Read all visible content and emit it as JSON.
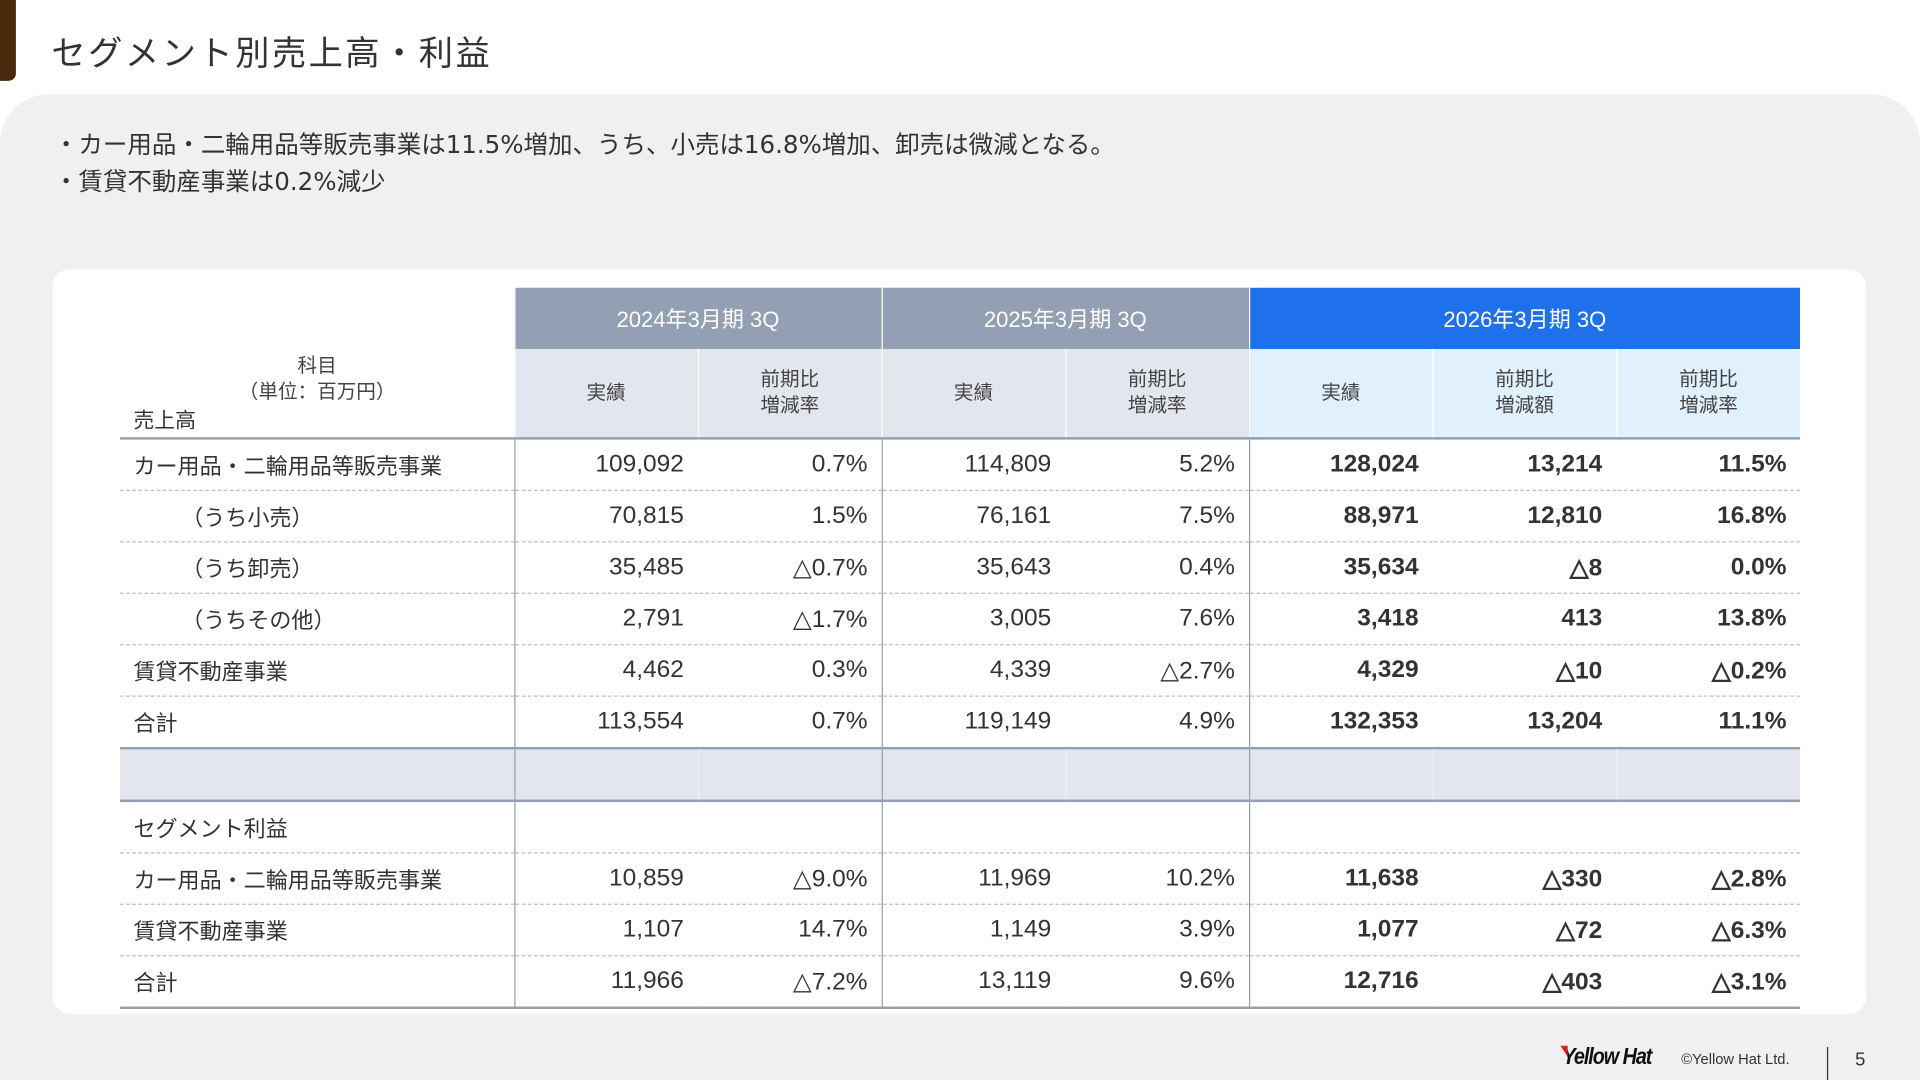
{
  "title": "セグメント別売上高・利益",
  "bullets": [
    "・カー用品・二輪用品等販売事業は11.5%増加、うち、小売は16.8%増加、卸売は微減となる。",
    "・賃貸不動産事業は0.2%減少"
  ],
  "table": {
    "label_header": {
      "line1": "科目",
      "line2": "（単位：百万円）",
      "section": "売上高"
    },
    "periods": [
      "2024年3月期 3Q",
      "2025年3月期 3Q",
      "2026年3月期 3Q"
    ],
    "sub_headers": {
      "actual": "実績",
      "rate": "前期比\n増減率",
      "amount": "前期比\n増減額"
    },
    "sales_rows": [
      {
        "label": "カー用品・二輪用品等販売事業",
        "indent": false,
        "v": [
          "109,092",
          "0.7%",
          "114,809",
          "5.2%",
          "128,024",
          "13,214",
          "11.5%"
        ]
      },
      {
        "label": "（うち小売）",
        "indent": true,
        "v": [
          "70,815",
          "1.5%",
          "76,161",
          "7.5%",
          "88,971",
          "12,810",
          "16.8%"
        ]
      },
      {
        "label": "（うち卸売）",
        "indent": true,
        "v": [
          "35,485",
          "△0.7%",
          "35,643",
          "0.4%",
          "35,634",
          "△8",
          "0.0%"
        ]
      },
      {
        "label": "（うちその他）",
        "indent": true,
        "v": [
          "2,791",
          "△1.7%",
          "3,005",
          "7.6%",
          "3,418",
          "413",
          "13.8%"
        ]
      },
      {
        "label": "賃貸不動産事業",
        "indent": false,
        "v": [
          "4,462",
          "0.3%",
          "4,339",
          "△2.7%",
          "4,329",
          "△10",
          "△0.2%"
        ]
      },
      {
        "label": "合計",
        "indent": false,
        "v": [
          "113,554",
          "0.7%",
          "119,149",
          "4.9%",
          "132,353",
          "13,204",
          "11.1%"
        ]
      }
    ],
    "profit_section": "セグメント利益",
    "profit_rows": [
      {
        "label": "カー用品・二輪用品等販売事業",
        "v": [
          "10,859",
          "△9.0%",
          "11,969",
          "10.2%",
          "11,638",
          "△330",
          "△2.8%"
        ]
      },
      {
        "label": "賃貸不動産事業",
        "v": [
          "1,107",
          "14.7%",
          "1,149",
          "3.9%",
          "1,077",
          "△72",
          "△6.3%"
        ]
      },
      {
        "label": "合計",
        "v": [
          "11,966",
          "△7.2%",
          "13,119",
          "9.6%",
          "12,716",
          "△403",
          "△3.1%"
        ]
      }
    ]
  },
  "colors": {
    "accent": "#4a2a0c",
    "header_gray": "#939fb3",
    "header_blue": "#1f70ec",
    "sub_gray": "#e3e6ec",
    "sub_blue": "#e0f1fd"
  },
  "footer": {
    "logo": "Yellow Hat",
    "copyright": "©Yellow Hat Ltd.",
    "page": "5"
  }
}
